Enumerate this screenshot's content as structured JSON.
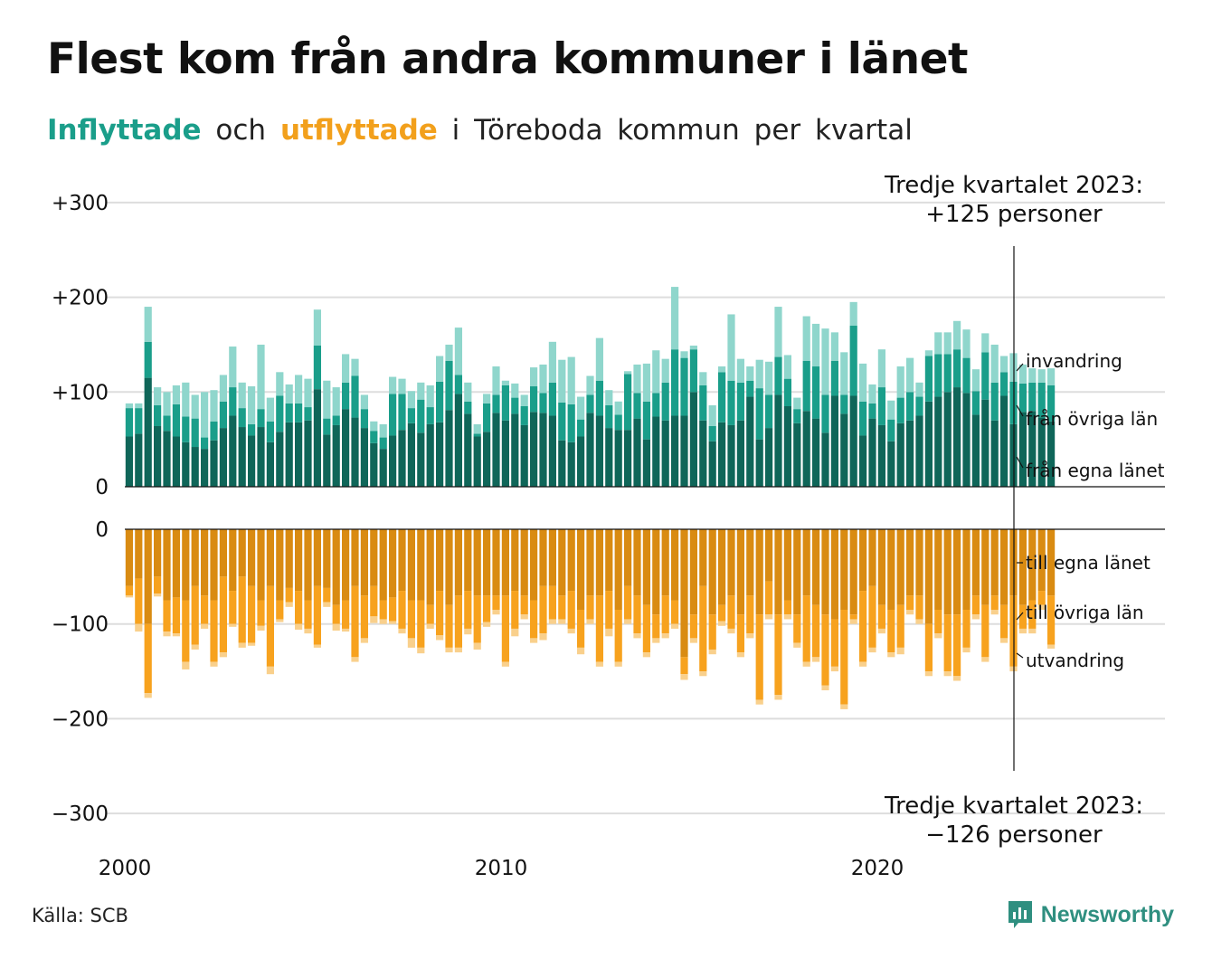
{
  "title": "Flest kom från andra kommuner i länet",
  "subtitle": {
    "in_word": "Inflyttade",
    "and_word": "och",
    "out_word": "utflyttade",
    "rest": "i Töreboda kommun per kvartal"
  },
  "source": "Källa: SCB",
  "brand": "Newsworthy",
  "colors": {
    "in_egna": "#0f6659",
    "in_ovriga": "#1a9e8a",
    "in_invandring": "#8fd6cc",
    "out_egna": "#d98b12",
    "out_ovriga": "#f7a21e",
    "out_utvandring": "#f9d08c",
    "grid": "#dddddd",
    "brand": "#2f8f80"
  },
  "annotations": {
    "top_line1": "Tredje kvartalet 2023:",
    "top_line2": "+125 personer",
    "bottom_line1": "Tredje kvartalet 2023:",
    "bottom_line2": "−126 personer"
  },
  "chart_data": {
    "type": "bar",
    "stacked": true,
    "x_start": "2000 Q1",
    "x_end": "2023 Q3",
    "x_ticks": [
      "2000",
      "2010",
      "2020"
    ],
    "top": {
      "y_ticks": [
        "+300",
        "+200",
        "+100",
        "0"
      ],
      "ylim": [
        0,
        300
      ],
      "series": [
        {
          "name": "från egna länet",
          "values": [
            53,
            56,
            115,
            64,
            59,
            53,
            47,
            42,
            40,
            49,
            62,
            75,
            63,
            54,
            63,
            47,
            58,
            68,
            68,
            70,
            103,
            55,
            65,
            82,
            73,
            62,
            46,
            40,
            54,
            60,
            67,
            57,
            66,
            68,
            81,
            98,
            77,
            53,
            58,
            78,
            70,
            77,
            65,
            79,
            78,
            75,
            49,
            47,
            53,
            78,
            75,
            62,
            60,
            60,
            72,
            50,
            74,
            70,
            75,
            75,
            100,
            70,
            48,
            68,
            65,
            70,
            95,
            50,
            62,
            97,
            85,
            67,
            80,
            72,
            57,
            96,
            77,
            96,
            54,
            72,
            65,
            48,
            67,
            70,
            75,
            90,
            95,
            100,
            105,
            99,
            76,
            92,
            70,
            96,
            66,
            79,
            80,
            73,
            69
          ]
        },
        {
          "name": "från övriga län",
          "values": [
            30,
            27,
            38,
            22,
            16,
            34,
            27,
            30,
            12,
            20,
            28,
            30,
            20,
            12,
            19,
            22,
            38,
            20,
            20,
            14,
            46,
            17,
            10,
            28,
            44,
            20,
            13,
            12,
            44,
            38,
            16,
            35,
            18,
            43,
            52,
            20,
            13,
            3,
            30,
            19,
            37,
            17,
            20,
            27,
            21,
            35,
            40,
            40,
            18,
            19,
            37,
            24,
            16,
            59,
            27,
            40,
            25,
            40,
            70,
            61,
            45,
            37,
            16,
            53,
            47,
            40,
            17,
            54,
            35,
            40,
            29,
            15,
            53,
            55,
            40,
            37,
            20,
            74,
            36,
            16,
            40,
            23,
            27,
            30,
            20,
            48,
            45,
            40,
            40,
            37,
            25,
            50,
            40,
            25,
            45,
            30,
            30,
            37,
            38
          ]
        },
        {
          "name": "invandring",
          "values": [
            5,
            5,
            37,
            19,
            25,
            20,
            36,
            25,
            48,
            33,
            28,
            43,
            27,
            40,
            68,
            25,
            25,
            20,
            30,
            30,
            38,
            40,
            30,
            30,
            18,
            15,
            10,
            14,
            18,
            16,
            18,
            18,
            23,
            27,
            17,
            50,
            20,
            10,
            10,
            30,
            5,
            15,
            12,
            20,
            30,
            43,
            45,
            50,
            24,
            20,
            45,
            16,
            14,
            3,
            30,
            40,
            45,
            25,
            66,
            7,
            4,
            14,
            22,
            6,
            70,
            25,
            15,
            30,
            35,
            53,
            25,
            12,
            47,
            45,
            70,
            30,
            45,
            25,
            40,
            20,
            40,
            20,
            33,
            36,
            15,
            6,
            23,
            23,
            30,
            30,
            23,
            20,
            40,
            17,
            30,
            20,
            15,
            14,
            18
          ]
        }
      ]
    },
    "bottom": {
      "y_ticks": [
        "0",
        "−100",
        "−200",
        "−300"
      ],
      "ylim": [
        -300,
        0
      ],
      "series": [
        {
          "name": "till egna länet",
          "values": [
            60,
            52,
            100,
            50,
            75,
            72,
            75,
            60,
            70,
            75,
            50,
            65,
            50,
            60,
            75,
            60,
            75,
            62,
            65,
            75,
            60,
            62,
            80,
            75,
            60,
            70,
            60,
            75,
            72,
            65,
            75,
            75,
            80,
            65,
            80,
            70,
            65,
            70,
            70,
            70,
            70,
            65,
            70,
            75,
            60,
            60,
            70,
            65,
            85,
            70,
            70,
            65,
            85,
            60,
            70,
            80,
            90,
            70,
            75,
            135,
            90,
            60,
            90,
            80,
            70,
            90,
            70,
            90,
            55,
            90,
            75,
            90,
            70,
            80,
            90,
            95,
            85,
            90,
            65,
            60,
            80,
            85,
            80,
            70,
            70,
            100,
            85,
            90,
            90,
            85,
            70,
            80,
            70,
            80,
            70,
            80,
            75,
            65,
            70
          ]
        },
        {
          "name": "till övriga län",
          "values": [
            10,
            48,
            73,
            18,
            33,
            38,
            65,
            62,
            30,
            65,
            80,
            35,
            70,
            60,
            27,
            85,
            20,
            15,
            35,
            30,
            62,
            15,
            20,
            30,
            75,
            45,
            32,
            20,
            25,
            40,
            40,
            50,
            20,
            47,
            45,
            55,
            40,
            50,
            28,
            15,
            70,
            40,
            20,
            40,
            50,
            35,
            25,
            40,
            40,
            25,
            70,
            40,
            55,
            35,
            40,
            50,
            25,
            40,
            25,
            18,
            25,
            90,
            37,
            17,
            35,
            40,
            40,
            90,
            35,
            85,
            15,
            30,
            70,
            55,
            75,
            50,
            100,
            5,
            75,
            65,
            25,
            45,
            45,
            15,
            25,
            50,
            25,
            60,
            65,
            40,
            20,
            55,
            15,
            35,
            75,
            25,
            30,
            15,
            52
          ]
        },
        {
          "name": "utvandring",
          "values": [
            2,
            8,
            5,
            3,
            5,
            3,
            8,
            5,
            5,
            5,
            5,
            3,
            5,
            3,
            5,
            8,
            3,
            5,
            6,
            5,
            3,
            5,
            7,
            3,
            5,
            5,
            7,
            5,
            3,
            5,
            10,
            6,
            5,
            5,
            5,
            5,
            6,
            7,
            5,
            5,
            5,
            8,
            5,
            5,
            7,
            5,
            5,
            5,
            7,
            5,
            5,
            8,
            5,
            5,
            5,
            5,
            5,
            5,
            5,
            6,
            5,
            5,
            5,
            5,
            5,
            5,
            5,
            5,
            5,
            5,
            5,
            5,
            5,
            5,
            5,
            5,
            5,
            5,
            5,
            5,
            5,
            5,
            7,
            5,
            5,
            5,
            5,
            5,
            5,
            5,
            5,
            5,
            5,
            5,
            5,
            5,
            5,
            5,
            4
          ]
        }
      ]
    },
    "series_labels": {
      "top": [
        "invandring",
        "från övriga län",
        "från egna länet"
      ],
      "bottom": [
        "till egna länet",
        "till övriga län",
        "utvandring"
      ]
    }
  }
}
